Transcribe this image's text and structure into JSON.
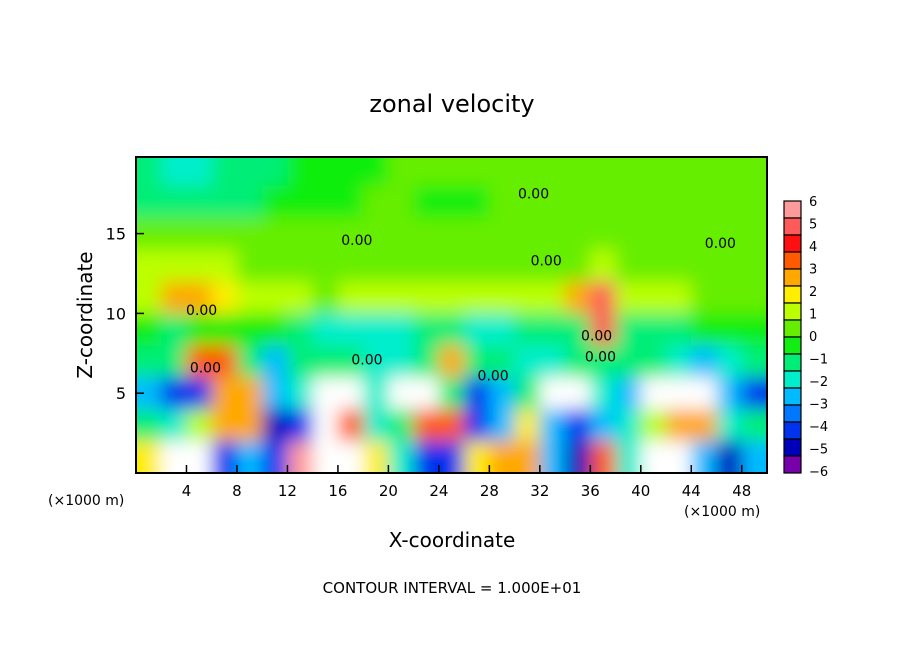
{
  "chart_data": {
    "type": "heatmap",
    "title": "zonal velocity",
    "xlabel": "X-coordinate",
    "ylabel": "Z-coordinate",
    "x_unit_left": "(×1000 m)",
    "x_unit_right": "(×1000 m)",
    "xlim": [
      0,
      50
    ],
    "ylim": [
      0,
      19.8
    ],
    "xticks": [
      4,
      8,
      12,
      16,
      20,
      24,
      28,
      32,
      36,
      40,
      44,
      48
    ],
    "yticks": [
      5,
      10,
      15
    ],
    "footer": "CONTOUR INTERVAL = 1.000E+01",
    "grid_x_centers": [
      1,
      3,
      5,
      7,
      9,
      11,
      13,
      15,
      17,
      19,
      21,
      23,
      25,
      27,
      29,
      31,
      33,
      35,
      37,
      39,
      41,
      43,
      45,
      47,
      49
    ],
    "grid_z_centers": [
      19,
      17,
      15,
      13,
      11,
      9,
      7,
      5,
      3,
      1
    ],
    "values": [
      [
        -1,
        -2,
        -2,
        -1.5,
        -1,
        -1,
        -0.5,
        -0.5,
        0,
        0,
        0.5,
        0.5,
        0.5,
        0.5,
        0.5,
        0.5,
        0.5,
        0.5,
        0.5,
        0.5,
        0.5,
        0.5,
        0.5,
        0.5,
        0.5
      ],
      [
        -1,
        -1.5,
        -1.5,
        -1.5,
        -1,
        -0.5,
        0,
        0,
        0,
        0.5,
        0.5,
        0,
        0,
        0,
        0.5,
        0.5,
        0.5,
        0.5,
        0.5,
        0.5,
        0.5,
        0.5,
        0.5,
        0.5,
        0.5
      ],
      [
        0.5,
        0.5,
        0.5,
        0.5,
        0.5,
        0.5,
        0.5,
        0.5,
        0.5,
        0.5,
        0.5,
        0.5,
        0.5,
        0.5,
        0.5,
        0.5,
        0.5,
        0.5,
        0.5,
        0.5,
        0.5,
        0.5,
        0.5,
        0.5,
        0.5
      ],
      [
        1,
        1.5,
        1.5,
        1,
        0.5,
        0.5,
        0.5,
        0.5,
        0.5,
        0.5,
        0.5,
        0.5,
        0.5,
        0.5,
        0.5,
        0.5,
        0.5,
        0.5,
        1,
        0.5,
        0.5,
        0.5,
        0.5,
        0.5,
        0.5
      ],
      [
        1,
        3,
        3,
        2,
        1,
        1,
        1,
        0.5,
        1,
        1,
        1,
        1,
        1,
        1,
        1,
        1,
        1,
        3,
        5,
        1,
        1,
        1,
        0.5,
        0.5,
        0.5
      ],
      [
        -0.5,
        -1,
        -0.5,
        -0.5,
        -0.5,
        0,
        -1,
        -2,
        -2,
        -2,
        -2,
        -1.5,
        -1.5,
        -2,
        -2,
        -1,
        -1,
        -1,
        5,
        -1,
        -1,
        -1,
        -0.5,
        -0.5,
        -0.5
      ],
      [
        -1,
        -1,
        4,
        4,
        -1,
        -3,
        -1,
        -1,
        -1,
        -2,
        -2,
        -1,
        3,
        -1,
        -1,
        -2,
        -2,
        -1,
        -1,
        -1,
        -1,
        -2,
        -3,
        -2,
        -1
      ],
      [
        -3,
        -4,
        -4,
        3,
        3,
        -3,
        -2,
        7,
        7,
        -2,
        7,
        7,
        -1,
        -4,
        -3,
        -1,
        7,
        7,
        -2,
        -3,
        7,
        7,
        7,
        -3,
        -4
      ],
      [
        -1,
        -2,
        1,
        3,
        3,
        -5,
        -4,
        7,
        4,
        -2,
        -1,
        4,
        4,
        -4,
        -3,
        2,
        -3,
        -4,
        -3,
        -2,
        1,
        3,
        3,
        -2,
        -1
      ],
      [
        2,
        7,
        7,
        -4,
        -3,
        -4,
        6,
        7,
        7,
        2,
        -2,
        -4,
        -4,
        2,
        3,
        3,
        -3,
        -5,
        4,
        -2,
        7,
        7,
        -3,
        -5,
        -3
      ]
    ],
    "contour_labels": [
      {
        "text": "0.00",
        "x": 31.5,
        "z": 17.5
      },
      {
        "text": "0.00",
        "x": 17.5,
        "z": 14.6
      },
      {
        "text": "0.00",
        "x": 32.5,
        "z": 13.3
      },
      {
        "text": "0.00",
        "x": 46.3,
        "z": 14.4
      },
      {
        "text": "0.00",
        "x": 5.2,
        "z": 10.2
      },
      {
        "text": "0.00",
        "x": 36.5,
        "z": 8.6
      },
      {
        "text": "0.00",
        "x": 18.3,
        "z": 7.1
      },
      {
        "text": "0.00",
        "x": 36.8,
        "z": 7.3
      },
      {
        "text": "0.00",
        "x": 5.5,
        "z": 6.6
      },
      {
        "text": "0.00",
        "x": 28.3,
        "z": 6.1
      }
    ],
    "colorbar": {
      "labels": [
        "6",
        "5",
        "4",
        "3",
        "2",
        "1",
        "0",
        "−1",
        "−2",
        "−3",
        "−4",
        "−5",
        "−6"
      ],
      "colors": [
        "#ff9a9a",
        "#ff5a5a",
        "#ff1010",
        "#ff5a00",
        "#ffa800",
        "#ffee00",
        "#bbff00",
        "#66ee00",
        "#11ee11",
        "#00ee77",
        "#00eecc",
        "#00bbff",
        "#0077ff",
        "#0033ee",
        "#0000bb",
        "#7700aa"
      ]
    },
    "above_max_color": "#ffffff"
  }
}
